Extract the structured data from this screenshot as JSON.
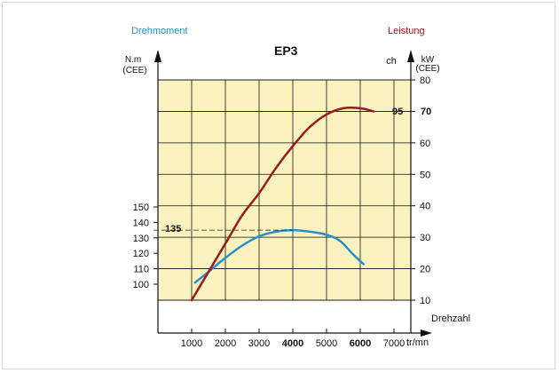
{
  "chart_data": {
    "type": "line",
    "title": "EP3",
    "left_series_label": "Drehmoment",
    "right_series_label": "Leistung",
    "left_axis_unit": "N.m",
    "left_axis_unit2": "(CEE)",
    "right_axis_unit_ch": "ch",
    "right_axis_unit": "kW",
    "right_axis_unit2": "(CEE)",
    "xlabel": "Drehzahl",
    "x_unit": "tr/mn",
    "x_ticks": [
      "1000",
      "2000",
      "3000",
      "4000",
      "5000",
      "6000",
      "7000"
    ],
    "x_ticks_bold": [
      "4000",
      "6000"
    ],
    "left_ticks": [
      "100",
      "110",
      "120",
      "130",
      "140",
      "150"
    ],
    "right_ticks": [
      "10",
      "20",
      "30",
      "40",
      "50",
      "60",
      "70",
      "80"
    ],
    "torque_peak_label": "135",
    "power_peak_ch_label": "95",
    "power_peak_kw_label": "70",
    "xlim": [
      0,
      7500
    ],
    "left_ylim": [
      100,
      150
    ],
    "right_ylim": [
      10,
      80
    ],
    "grid": true,
    "colors": {
      "torque": "#2a8fc9",
      "power": "#9b1b1b",
      "plot_bg": "#faf3c0",
      "torque_label": "#2a8fc9",
      "power_label": "#b0101a"
    },
    "series": [
      {
        "name": "Drehmoment",
        "axis": "left",
        "x": [
          1100,
          1500,
          2000,
          2500,
          3000,
          3500,
          4000,
          4500,
          5000,
          5400,
          5800,
          6100
        ],
        "values": [
          101,
          108,
          117,
          125,
          131,
          134,
          135,
          134,
          132,
          128,
          119,
          113
        ]
      },
      {
        "name": "Leistung",
        "axis": "right",
        "x": [
          1000,
          1500,
          2000,
          2500,
          3000,
          3500,
          4000,
          4500,
          5000,
          5500,
          6000,
          6400
        ],
        "values": [
          10,
          19,
          28,
          37,
          44,
          52,
          59,
          65,
          69,
          71,
          71,
          70
        ]
      }
    ]
  }
}
